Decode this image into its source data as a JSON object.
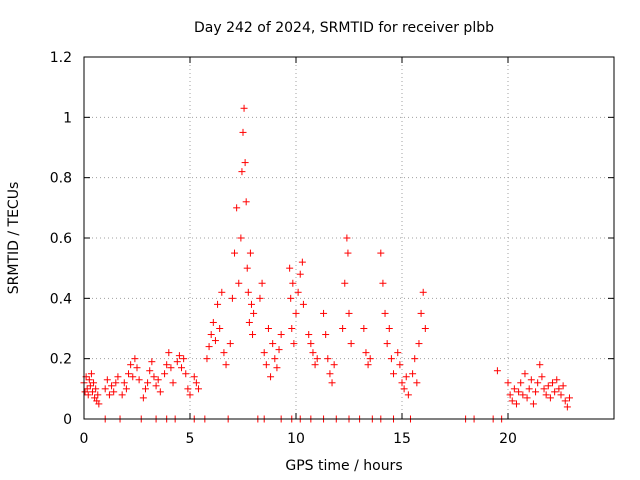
{
  "chart_data": {
    "type": "scatter",
    "title": "Day 242 of 2024, SRMTID for receiver plbb",
    "xlabel": "GPS time / hours",
    "ylabel": "SRMTID / TECUs",
    "xlim": [
      0,
      25
    ],
    "ylim": [
      0,
      1.2
    ],
    "xticks": [
      0,
      5,
      10,
      15,
      20
    ],
    "yticks": [
      0,
      0.2,
      0.4,
      0.6,
      0.8,
      1,
      1.2
    ],
    "ytick_labels": [
      "0",
      "0.2",
      "0.4",
      "0.6",
      "0.8",
      "1",
      "1.2"
    ],
    "grid": true,
    "marker": "+",
    "color": "#ff0000",
    "series": [
      {
        "name": "SRMTID",
        "points": [
          [
            0.0,
            0.12
          ],
          [
            0.05,
            0.09
          ],
          [
            0.1,
            0.14
          ],
          [
            0.15,
            0.1
          ],
          [
            0.2,
            0.08
          ],
          [
            0.25,
            0.13
          ],
          [
            0.3,
            0.11
          ],
          [
            0.35,
            0.15
          ],
          [
            0.4,
            0.09
          ],
          [
            0.45,
            0.12
          ],
          [
            0.5,
            0.07
          ],
          [
            0.55,
            0.1
          ],
          [
            0.6,
            0.06
          ],
          [
            0.65,
            0.08
          ],
          [
            0.7,
            0.05
          ],
          [
            1.0,
            0.1
          ],
          [
            1.1,
            0.13
          ],
          [
            1.2,
            0.08
          ],
          [
            1.3,
            0.11
          ],
          [
            1.4,
            0.09
          ],
          [
            1.5,
            0.12
          ],
          [
            1.6,
            0.14
          ],
          [
            1.8,
            0.08
          ],
          [
            1.9,
            0.12
          ],
          [
            2.0,
            0.1
          ],
          [
            2.1,
            0.15
          ],
          [
            2.2,
            0.18
          ],
          [
            2.3,
            0.14
          ],
          [
            2.4,
            0.2
          ],
          [
            2.5,
            0.17
          ],
          [
            2.6,
            0.13
          ],
          [
            2.8,
            0.07
          ],
          [
            2.9,
            0.1
          ],
          [
            3.0,
            0.12
          ],
          [
            3.1,
            0.16
          ],
          [
            3.2,
            0.19
          ],
          [
            3.3,
            0.14
          ],
          [
            3.4,
            0.11
          ],
          [
            3.5,
            0.13
          ],
          [
            3.6,
            0.09
          ],
          [
            3.8,
            0.15
          ],
          [
            3.9,
            0.18
          ],
          [
            4.0,
            0.22
          ],
          [
            4.1,
            0.17
          ],
          [
            4.2,
            0.12
          ],
          [
            4.4,
            0.19
          ],
          [
            4.5,
            0.21
          ],
          [
            4.6,
            0.17
          ],
          [
            4.7,
            0.2
          ],
          [
            4.8,
            0.15
          ],
          [
            4.9,
            0.1
          ],
          [
            5.0,
            0.08
          ],
          [
            5.2,
            0.14
          ],
          [
            5.3,
            0.12
          ],
          [
            5.4,
            0.1
          ],
          [
            5.8,
            0.2
          ],
          [
            5.9,
            0.24
          ],
          [
            6.0,
            0.28
          ],
          [
            6.1,
            0.32
          ],
          [
            6.2,
            0.26
          ],
          [
            6.3,
            0.38
          ],
          [
            6.4,
            0.3
          ],
          [
            6.5,
            0.42
          ],
          [
            6.6,
            0.22
          ],
          [
            6.7,
            0.18
          ],
          [
            6.9,
            0.25
          ],
          [
            7.0,
            0.4
          ],
          [
            7.1,
            0.55
          ],
          [
            7.2,
            0.7
          ],
          [
            7.3,
            0.45
          ],
          [
            7.4,
            0.6
          ],
          [
            7.45,
            0.82
          ],
          [
            7.5,
            0.95
          ],
          [
            7.55,
            1.03
          ],
          [
            7.6,
            0.85
          ],
          [
            7.65,
            0.72
          ],
          [
            7.7,
            0.5
          ],
          [
            7.75,
            0.42
          ],
          [
            7.8,
            0.32
          ],
          [
            7.85,
            0.55
          ],
          [
            7.9,
            0.38
          ],
          [
            7.95,
            0.28
          ],
          [
            8.0,
            0.35
          ],
          [
            8.3,
            0.4
          ],
          [
            8.4,
            0.45
          ],
          [
            8.5,
            0.22
          ],
          [
            8.6,
            0.18
          ],
          [
            8.7,
            0.3
          ],
          [
            8.8,
            0.14
          ],
          [
            8.9,
            0.25
          ],
          [
            9.0,
            0.2
          ],
          [
            9.1,
            0.17
          ],
          [
            9.2,
            0.23
          ],
          [
            9.3,
            0.28
          ],
          [
            9.7,
            0.5
          ],
          [
            9.75,
            0.4
          ],
          [
            9.8,
            0.3
          ],
          [
            9.85,
            0.45
          ],
          [
            9.9,
            0.25
          ],
          [
            10.0,
            0.35
          ],
          [
            10.1,
            0.42
          ],
          [
            10.2,
            0.48
          ],
          [
            10.3,
            0.52
          ],
          [
            10.35,
            0.38
          ],
          [
            10.6,
            0.28
          ],
          [
            10.7,
            0.25
          ],
          [
            10.8,
            0.22
          ],
          [
            10.9,
            0.18
          ],
          [
            11.0,
            0.2
          ],
          [
            11.3,
            0.35
          ],
          [
            11.4,
            0.28
          ],
          [
            11.5,
            0.2
          ],
          [
            11.6,
            0.15
          ],
          [
            11.7,
            0.12
          ],
          [
            11.8,
            0.18
          ],
          [
            12.2,
            0.3
          ],
          [
            12.3,
            0.45
          ],
          [
            12.4,
            0.6
          ],
          [
            12.45,
            0.55
          ],
          [
            12.5,
            0.35
          ],
          [
            12.6,
            0.25
          ],
          [
            13.2,
            0.3
          ],
          [
            13.3,
            0.22
          ],
          [
            13.4,
            0.18
          ],
          [
            13.5,
            0.2
          ],
          [
            14.0,
            0.55
          ],
          [
            14.1,
            0.45
          ],
          [
            14.2,
            0.35
          ],
          [
            14.3,
            0.25
          ],
          [
            14.4,
            0.3
          ],
          [
            14.5,
            0.2
          ],
          [
            14.6,
            0.15
          ],
          [
            14.8,
            0.22
          ],
          [
            14.9,
            0.18
          ],
          [
            15.0,
            0.12
          ],
          [
            15.1,
            0.1
          ],
          [
            15.2,
            0.14
          ],
          [
            15.3,
            0.08
          ],
          [
            15.5,
            0.15
          ],
          [
            15.6,
            0.2
          ],
          [
            15.7,
            0.12
          ],
          [
            15.8,
            0.25
          ],
          [
            15.9,
            0.35
          ],
          [
            16.0,
            0.42
          ],
          [
            16.1,
            0.3
          ],
          [
            19.5,
            0.16
          ],
          [
            20.0,
            0.12
          ],
          [
            20.1,
            0.08
          ],
          [
            20.2,
            0.06
          ],
          [
            20.3,
            0.1
          ],
          [
            20.4,
            0.05
          ],
          [
            20.5,
            0.09
          ],
          [
            20.6,
            0.12
          ],
          [
            20.7,
            0.08
          ],
          [
            20.8,
            0.15
          ],
          [
            20.9,
            0.07
          ],
          [
            21.0,
            0.1
          ],
          [
            21.1,
            0.13
          ],
          [
            21.2,
            0.05
          ],
          [
            21.3,
            0.09
          ],
          [
            21.4,
            0.12
          ],
          [
            21.5,
            0.18
          ],
          [
            21.6,
            0.14
          ],
          [
            21.7,
            0.1
          ],
          [
            21.8,
            0.08
          ],
          [
            21.9,
            0.11
          ],
          [
            22.0,
            0.07
          ],
          [
            22.1,
            0.12
          ],
          [
            22.2,
            0.09
          ],
          [
            22.3,
            0.13
          ],
          [
            22.4,
            0.1
          ],
          [
            22.5,
            0.08
          ],
          [
            22.6,
            0.11
          ],
          [
            22.7,
            0.06
          ],
          [
            22.8,
            0.04
          ],
          [
            22.9,
            0.07
          ],
          [
            1.0,
            0.0
          ],
          [
            1.7,
            0.0
          ],
          [
            2.7,
            0.0
          ],
          [
            3.4,
            0.0
          ],
          [
            3.9,
            0.0
          ],
          [
            4.3,
            0.0
          ],
          [
            5.2,
            0.0
          ],
          [
            5.7,
            0.0
          ],
          [
            6.8,
            0.0
          ],
          [
            8.2,
            0.0
          ],
          [
            8.5,
            0.0
          ],
          [
            9.3,
            0.0
          ],
          [
            9.8,
            0.0
          ],
          [
            10.2,
            0.0
          ],
          [
            10.7,
            0.0
          ],
          [
            11.3,
            0.0
          ],
          [
            11.9,
            0.0
          ],
          [
            12.5,
            0.0
          ],
          [
            13.0,
            0.0
          ],
          [
            13.6,
            0.0
          ],
          [
            14.0,
            0.0
          ],
          [
            14.6,
            0.0
          ],
          [
            15.4,
            0.0
          ],
          [
            18.0,
            0.0
          ],
          [
            18.4,
            0.0
          ],
          [
            19.3,
            0.0
          ],
          [
            19.7,
            0.0
          ]
        ]
      }
    ]
  }
}
